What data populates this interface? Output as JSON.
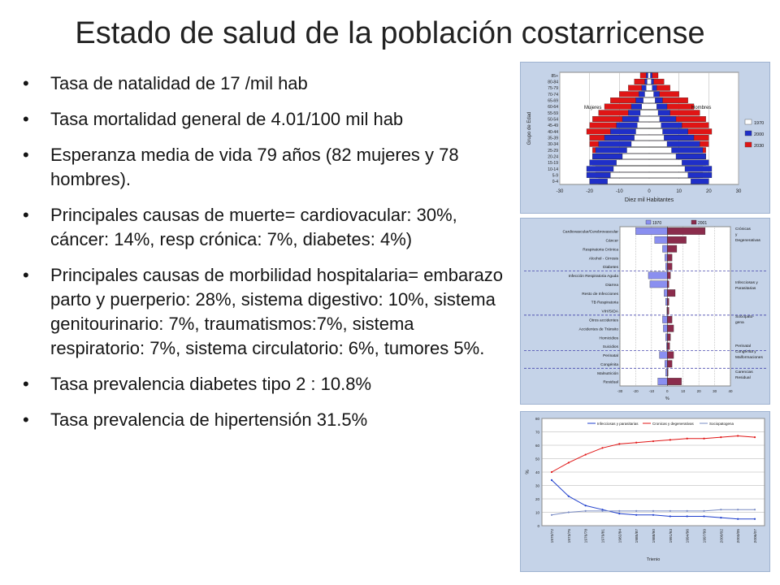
{
  "slide": {
    "title": "Estado de salud de la población costarricense",
    "bullets": [
      "Tasa de natalidad de 17 /mil hab",
      "Tasa mortalidad general de 4.01/100 mil hab",
      "Esperanza media de vida 79 años (82 mujeres y 78 hombres).",
      "Principales causas de muerte= cardiovacular: 30%, cáncer: 14%, resp crónica: 7%, diabetes: 4%)",
      "Principales causas de morbilidad hospitalaria= embarazo parto y puerperio: 28%, sistema digestivo: 10%, sistema genitourinario: 7%, traumatismos:7%, sistema respiratorio: 7%, sistema circulatorio: 6%, tumores 5%.",
      "Tasa prevalencia diabetes tipo 2 : 10.8%",
      "Tasa prevalencia de hipertensión 31.5%"
    ]
  },
  "chart_data": [
    {
      "type": "bar",
      "subtype": "population-pyramid",
      "ylabel": "Grupo de Edad",
      "xlabel": "Diez mil Habitantes",
      "left_label": "Mujeres",
      "right_label": "Hombres",
      "xlim": [
        -30,
        30
      ],
      "xticks": [
        "-30",
        "-20",
        "-10",
        "0",
        "10",
        "20",
        "30"
      ],
      "categories": [
        "0-4",
        "5-9",
        "10-14",
        "15-19",
        "20-24",
        "25-29",
        "30-34",
        "35-39",
        "40-44",
        "45-49",
        "50-54",
        "55-59",
        "60-64",
        "65-69",
        "70-74",
        "75-79",
        "80-84",
        "85+"
      ],
      "series": [
        {
          "name": "1970",
          "color": "#ffffff",
          "values": [
            14,
            13,
            12,
            11,
            9,
            7.5,
            6,
            5,
            4.5,
            4,
            3.5,
            3,
            2.5,
            2,
            1.5,
            1,
            0.7,
            0.4
          ]
        },
        {
          "name": "2000",
          "color": "#1f2fc8",
          "values": [
            20,
            21,
            21,
            20,
            19,
            18,
            17,
            15,
            13,
            11,
            9,
            7,
            6,
            4.5,
            3.5,
            2.5,
            1.5,
            1
          ]
        },
        {
          "name": "2030",
          "color": "#e01515",
          "values": [
            17,
            18,
            18,
            19,
            19,
            19,
            20,
            20,
            21,
            20,
            19,
            17,
            15,
            13,
            10,
            7,
            5,
            3
          ]
        }
      ]
    },
    {
      "type": "bar",
      "subtype": "diverging-horizontal",
      "xlabel": "%",
      "xlim": [
        -30,
        40
      ],
      "xticks": [
        "-30",
        "-20",
        "-10",
        "0",
        "10",
        "20",
        "30",
        "40"
      ],
      "legend": [
        "1970",
        "2001"
      ],
      "categories": [
        "Cardiovascular/Cerebrovascular",
        "Cáncer",
        "Respiratoria Crónica",
        "Alcohol - Cirrosis",
        "Diabetes",
        "Infección Respiratoria Aguda",
        "Diarrea",
        "Resto de Infecciones",
        "TB Respiratoria",
        "VIH/SIDA",
        "Otros accidentes",
        "Accidentes de Tránsito",
        "Homicidios",
        "Suicidios",
        "Perinatal",
        "Congénita",
        "Malnutrición",
        "Residual"
      ],
      "series": [
        {
          "name": "1970",
          "color": "#8a8ff0",
          "values": [
            -20,
            -8,
            -3,
            -1.5,
            -1,
            -12,
            -11,
            -2,
            -1,
            -0.3,
            -3,
            -2.5,
            -1,
            -0.5,
            -5,
            -1.5,
            -1,
            -6
          ]
        },
        {
          "name": "2001",
          "color": "#8b2c4c",
          "values": [
            24,
            12,
            6,
            3,
            3,
            2,
            1,
            5,
            1,
            1,
            3,
            4,
            2,
            1.5,
            4,
            3,
            0.5,
            9
          ]
        }
      ],
      "groups": [
        {
          "label": "Crónicas y Degenerativas"
        },
        {
          "label": "Infecciosas y Parasitarias"
        },
        {
          "label": "Sociopato- gena"
        },
        {
          "label": "Perinatal Congénita y Malformaciones"
        },
        {
          "label": "Carencias Residual"
        }
      ]
    },
    {
      "type": "line",
      "xlabel": "Trienio",
      "ylabel": "%",
      "ylim": [
        0,
        80
      ],
      "yticks": [
        "0",
        "10",
        "20",
        "30",
        "40",
        "50",
        "60",
        "70",
        "80"
      ],
      "categories": [
        "1970/72",
        "1973/75",
        "1976/78",
        "1979/81",
        "1982/84",
        "1985/87",
        "1988/90",
        "1991/93",
        "1994/96",
        "1997/99",
        "2000/02",
        "2003/05",
        "2006/07"
      ],
      "series": [
        {
          "name": "Infecciosas y parasitarias",
          "color": "#1f3fcc",
          "values": [
            34,
            22,
            15,
            12,
            9,
            8,
            8,
            7,
            7,
            7,
            6,
            5,
            5
          ]
        },
        {
          "name": "Cronicas y degenerativas",
          "color": "#e01515",
          "values": [
            40,
            47,
            53,
            58,
            61,
            62,
            63,
            64,
            65,
            65,
            66,
            67,
            66
          ]
        },
        {
          "name": "Sociopatogena",
          "color": "#7a8cc4",
          "values": [
            8,
            10,
            11,
            11,
            11,
            11,
            11,
            11,
            11,
            11,
            12,
            12,
            12
          ]
        }
      ]
    }
  ]
}
